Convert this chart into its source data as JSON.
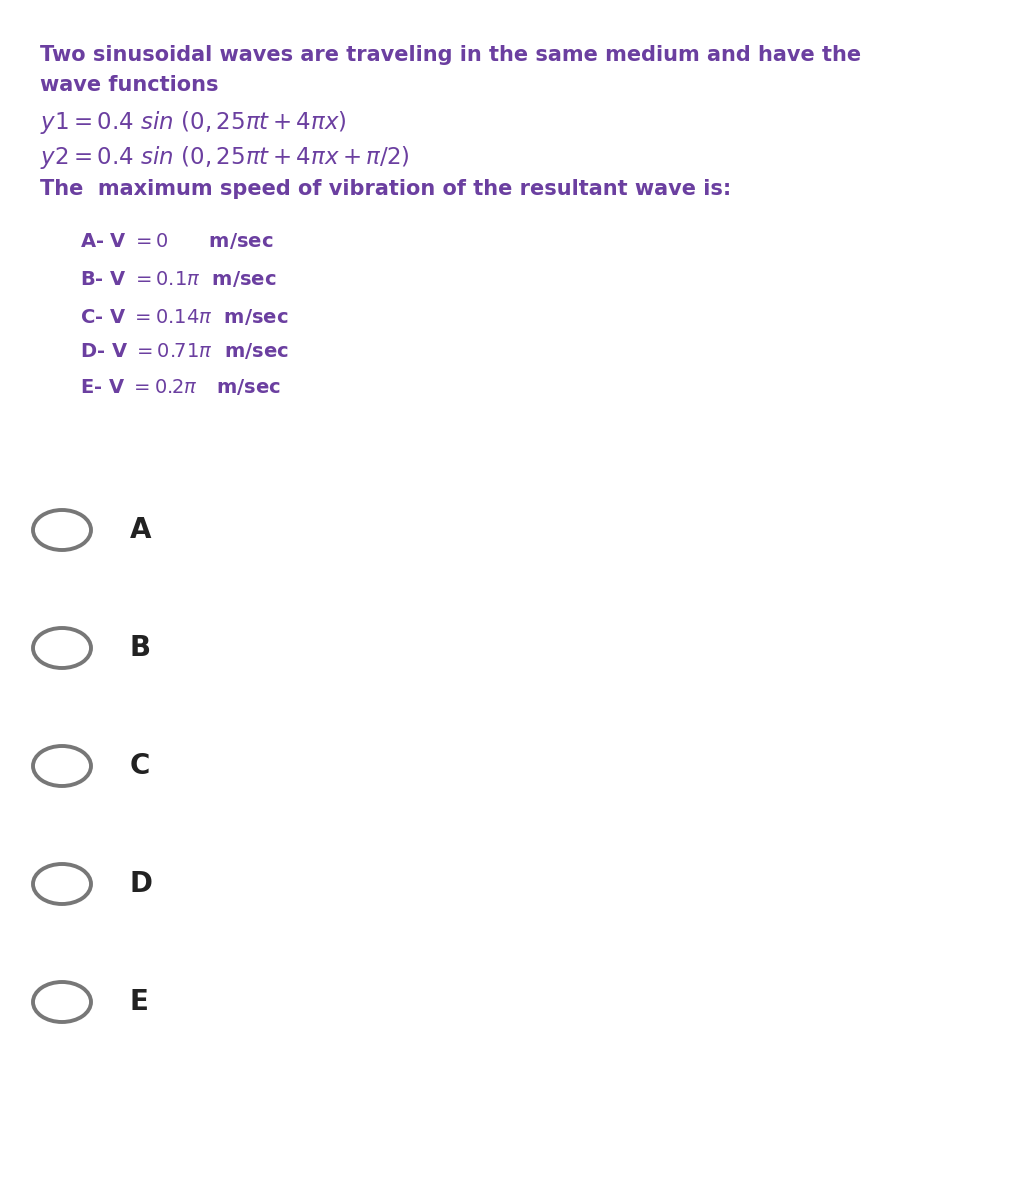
{
  "bg_color": "#ffffff",
  "purple": "#6B3FA0",
  "black": "#222222",
  "gray": "#777777",
  "q_line1": "Two sinusoidal waves are traveling in the same medium and have the",
  "q_line2": "wave functions",
  "formula1": "$y1 = 0.4\\ \\mathit{sin}\\ (0, 25\\pi t + 4\\pi x)$",
  "formula2": "$y2 = 0.4\\ \\mathit{sin}\\ (0, 25\\pi t + 4\\pi x + \\pi/2)$",
  "q_last": "The  maximum speed of vibration of the resultant wave is:",
  "opt_A": "A- V = 0      m/sec",
  "opt_B": "B- V = 0.1π  m/sec",
  "opt_C": "C- V = 0.14π  m/sec",
  "opt_D": "D- V = 0.71π  m/sec",
  "opt_E": "E- V = 0.2π   m/sec",
  "radio_labels": [
    "A",
    "B",
    "C",
    "D",
    "E"
  ],
  "figw": 10.11,
  "figh": 12.0,
  "dpi": 100
}
